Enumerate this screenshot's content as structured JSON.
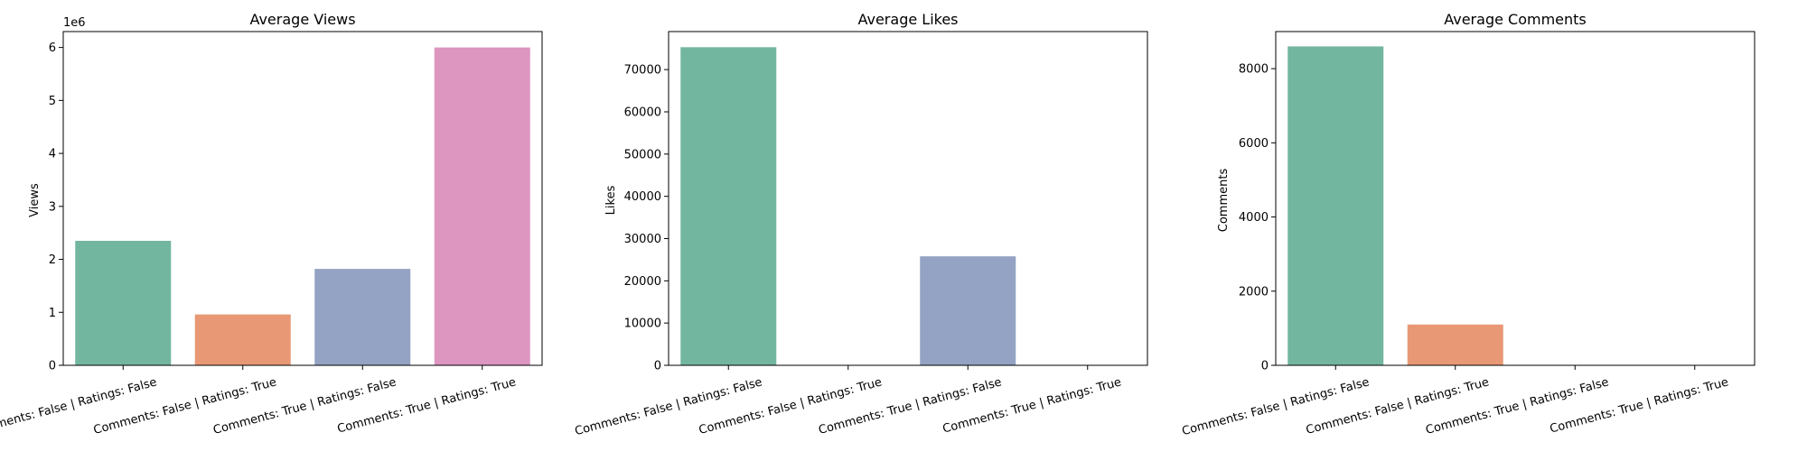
{
  "chart_data": [
    {
      "type": "bar",
      "title": "Average Views",
      "xlabel": "",
      "ylabel": "Views",
      "y_offset_label": "1e6",
      "categories": [
        "Comments: False | Ratings: False",
        "Comments: False | Ratings: True",
        "Comments: True | Ratings: False",
        "Comments: True | Ratings: True"
      ],
      "values": [
        2350000,
        960000,
        1820000,
        6000000
      ],
      "ylim": [
        0,
        6300000
      ],
      "yticks": [
        0,
        1000000,
        2000000,
        3000000,
        4000000,
        5000000,
        6000000
      ],
      "ytick_labels": [
        "0",
        "1",
        "2",
        "3",
        "4",
        "5",
        "6"
      ],
      "colors": [
        "#73b6a0",
        "#e89874",
        "#94a3c3",
        "#dc96c0"
      ],
      "grid": false
    },
    {
      "type": "bar",
      "title": "Average Likes",
      "xlabel": "",
      "ylabel": "Likes",
      "categories": [
        "Comments: False | Ratings: False",
        "Comments: False | Ratings: True",
        "Comments: True | Ratings: False",
        "Comments: True | Ratings: True"
      ],
      "values": [
        75300,
        0,
        25800,
        0
      ],
      "ylim": [
        0,
        79000
      ],
      "yticks": [
        0,
        10000,
        20000,
        30000,
        40000,
        50000,
        60000,
        70000
      ],
      "ytick_labels": [
        "0",
        "10000",
        "20000",
        "30000",
        "40000",
        "50000",
        "60000",
        "70000"
      ],
      "colors": [
        "#73b6a0",
        "#e89874",
        "#94a3c3",
        "#dc96c0"
      ],
      "grid": false
    },
    {
      "type": "bar",
      "title": "Average Comments",
      "xlabel": "",
      "ylabel": "Comments",
      "categories": [
        "Comments: False | Ratings: False",
        "Comments: False | Ratings: True",
        "Comments: True | Ratings: False",
        "Comments: True | Ratings: True"
      ],
      "values": [
        8600,
        1100,
        0,
        0
      ],
      "ylim": [
        0,
        9000
      ],
      "yticks": [
        0,
        2000,
        4000,
        6000,
        8000
      ],
      "ytick_labels": [
        "0",
        "2000",
        "4000",
        "6000",
        "8000"
      ],
      "colors": [
        "#73b6a0",
        "#e89874",
        "#94a3c3",
        "#dc96c0"
      ],
      "grid": false
    }
  ]
}
